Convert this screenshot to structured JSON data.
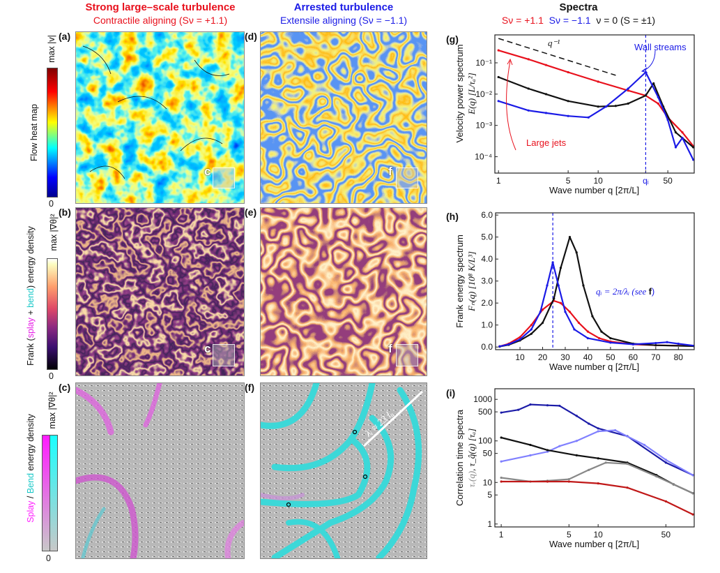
{
  "columns": {
    "left": {
      "title": "Strong large–scale turbulence",
      "subtitle": "Contractile aligning (Sν = +1.1)"
    },
    "middle": {
      "title": "Arrested turbulence",
      "subtitle": "Extensile aligning (Sν = −1.1)"
    },
    "right": {
      "title": "Spectra",
      "legend": [
        {
          "label": "Sν = +1.1",
          "color": "#e8101c"
        },
        {
          "label": "Sν = −1.1",
          "color": "#1a1ae6"
        },
        {
          "label": "ν = 0 (S = ±1)",
          "color": "#111111"
        }
      ]
    }
  },
  "panels": {
    "a": "(a)",
    "b": "(b)",
    "c": "(c)",
    "d": "(d)",
    "e": "(e)",
    "f": "(f)",
    "g": "(g)",
    "h": "(h)",
    "i": "(i)"
  },
  "insets": {
    "c_label": "c",
    "f_label": "f"
  },
  "colorbars": {
    "flow": {
      "title": "Flow heat map",
      "max": "max |v|",
      "min": "0",
      "colormap": "jet"
    },
    "frank": {
      "title_pre": "Frank (",
      "splay": "splay",
      "plus": " + ",
      "bend": "bend",
      "title_post": ") energy density",
      "max": "max |∇θ|²",
      "min": "0",
      "colormap": "inferno"
    },
    "splaybend": {
      "splay": "Splay",
      "slash": " / ",
      "bend": "Bend",
      "rest": " energy density",
      "max": "max |∇θ|²",
      "min": "0",
      "splay_color": "#ff1aff",
      "bend_color": "#1ae6e6"
    }
  },
  "annotations": {
    "wavelength": "λᵢ ≈ 23 lₐ",
    "q_power": "q⁻¹",
    "wall_streams": "Wall streams",
    "large_jets": "Large jets",
    "qi": "qᵢ",
    "qi_def": "qᵢ = 2π/λᵢ (see ",
    "qi_def_f": "f",
    "qi_def_end": ")"
  },
  "axes": {
    "g": {
      "ylabel1": "Velocity power spectrum",
      "ylabel2": "E(q) [L/τₐ²]",
      "xlabel": "Wave number q [2π/L]"
    },
    "h": {
      "ylabel1": "Frank energy spectrum",
      "ylabel2": "Fₙ(q) [10⁸ K/L³]",
      "xlabel": "Wave number q [2π/L]"
    },
    "i": {
      "ylabel1": "Correlation time spectra",
      "ylabel2a": "τᵥ(q)",
      "ylabel2b": ", τ_q̂(q) [τₐ]",
      "xlabel": "Wave number q [2π/L]"
    }
  },
  "chart_data": [
    {
      "id": "g",
      "type": "line",
      "xscale": "log",
      "yscale": "log",
      "xlim": [
        0.92,
        92
      ],
      "ylim": [
        3e-05,
        0.78
      ],
      "xticks": [
        {
          "v": 1,
          "label": "1"
        },
        {
          "v": 5,
          "label": "5"
        },
        {
          "v": 10,
          "label": "10"
        },
        {
          "v": 30,
          "label": "qᵢ",
          "color": "#1a1ae6"
        },
        {
          "v": 50,
          "label": "50"
        }
      ],
      "yticks": [
        {
          "v": 0.1,
          "label": "10⁻¹"
        },
        {
          "v": 0.01,
          "label": "10⁻²"
        },
        {
          "v": 0.001,
          "label": "10⁻³"
        },
        {
          "v": 0.0001,
          "label": "10⁻⁴"
        }
      ],
      "vlines": [
        {
          "x": 30,
          "color": "#1a1ae6",
          "dashed": true
        }
      ],
      "series": [
        {
          "color": "#111111",
          "dashed": true,
          "points": [
            [
              1,
              0.6
            ],
            [
              15,
              0.04
            ]
          ]
        },
        {
          "color": "#e8101c",
          "points": [
            [
              1,
              0.25
            ],
            [
              2,
              0.13
            ],
            [
              3,
              0.085
            ],
            [
              5,
              0.05
            ],
            [
              10,
              0.025
            ],
            [
              20,
              0.013
            ],
            [
              30,
              0.009
            ],
            [
              40,
              0.005
            ],
            [
              50,
              0.0018
            ],
            [
              70,
              0.0006
            ],
            [
              90,
              0.00022
            ]
          ]
        },
        {
          "color": "#111111",
          "points": [
            [
              1,
              0.035
            ],
            [
              2,
              0.015
            ],
            [
              3,
              0.01
            ],
            [
              5,
              0.006
            ],
            [
              10,
              0.004
            ],
            [
              15,
              0.0042
            ],
            [
              20,
              0.005
            ],
            [
              30,
              0.009
            ],
            [
              36,
              0.022
            ],
            [
              45,
              0.004
            ],
            [
              60,
              0.0006
            ],
            [
              90,
              0.0002
            ]
          ]
        },
        {
          "color": "#1a1ae6",
          "points": [
            [
              1,
              0.006
            ],
            [
              2,
              0.003
            ],
            [
              3,
              0.0025
            ],
            [
              5,
              0.002
            ],
            [
              8,
              0.0018
            ],
            [
              12,
              0.004
            ],
            [
              20,
              0.015
            ],
            [
              30,
              0.05
            ],
            [
              40,
              0.008
            ],
            [
              50,
              0.0015
            ],
            [
              60,
              0.0002
            ],
            [
              70,
              0.0004
            ],
            [
              90,
              8e-05
            ]
          ]
        }
      ]
    },
    {
      "id": "h",
      "type": "line",
      "xscale": "linear",
      "yscale": "linear",
      "xlim": [
        -0.8,
        87
      ],
      "ylim": [
        -0.12,
        6.1
      ],
      "xticks": [
        {
          "v": 10,
          "label": "10"
        },
        {
          "v": 20,
          "label": "20"
        },
        {
          "v": 30,
          "label": "30"
        },
        {
          "v": 40,
          "label": "40"
        },
        {
          "v": 50,
          "label": "50"
        },
        {
          "v": 60,
          "label": "60"
        },
        {
          "v": 70,
          "label": "70"
        },
        {
          "v": 80,
          "label": "80"
        }
      ],
      "yticks": [
        {
          "v": 0,
          "label": "0.0"
        },
        {
          "v": 1,
          "label": "1.0"
        },
        {
          "v": 2,
          "label": "2.0"
        },
        {
          "v": 3,
          "label": "3.0"
        },
        {
          "v": 4,
          "label": "4.0"
        },
        {
          "v": 5,
          "label": "5.0"
        },
        {
          "v": 6,
          "label": "6.0"
        }
      ],
      "vlines": [
        {
          "x": 24.5,
          "color": "#1a1ae6",
          "dashed": true
        }
      ],
      "series": [
        {
          "color": "#e8101c",
          "points": [
            [
              1,
              0.03
            ],
            [
              5,
              0.15
            ],
            [
              10,
              0.45
            ],
            [
              15,
              1.0
            ],
            [
              20,
              1.7
            ],
            [
              25,
              2.1
            ],
            [
              28,
              2.0
            ],
            [
              32,
              1.6
            ],
            [
              36,
              1.1
            ],
            [
              40,
              0.7
            ],
            [
              45,
              0.4
            ],
            [
              50,
              0.25
            ],
            [
              60,
              0.12
            ],
            [
              70,
              0.08
            ],
            [
              87,
              0.05
            ]
          ]
        },
        {
          "color": "#111111",
          "points": [
            [
              1,
              0.02
            ],
            [
              5,
              0.1
            ],
            [
              10,
              0.3
            ],
            [
              15,
              0.6
            ],
            [
              20,
              1.1
            ],
            [
              25,
              2.2
            ],
            [
              28,
              3.6
            ],
            [
              32,
              5.0
            ],
            [
              35,
              4.3
            ],
            [
              38,
              2.8
            ],
            [
              42,
              1.4
            ],
            [
              46,
              0.7
            ],
            [
              50,
              0.4
            ],
            [
              60,
              0.15
            ],
            [
              70,
              0.08
            ],
            [
              87,
              0.04
            ]
          ]
        },
        {
          "color": "#1a1ae6",
          "points": [
            [
              1,
              0.03
            ],
            [
              5,
              0.12
            ],
            [
              10,
              0.35
            ],
            [
              15,
              0.8
            ],
            [
              19,
              1.6
            ],
            [
              22,
              2.8
            ],
            [
              24.5,
              3.85
            ],
            [
              27,
              2.8
            ],
            [
              30,
              1.6
            ],
            [
              34,
              0.8
            ],
            [
              40,
              0.4
            ],
            [
              50,
              0.2
            ],
            [
              60,
              0.12
            ],
            [
              70,
              0.18
            ],
            [
              75,
              0.22
            ],
            [
              80,
              0.15
            ],
            [
              87,
              0.06
            ]
          ]
        }
      ]
    },
    {
      "id": "i",
      "type": "line",
      "xscale": "log",
      "yscale": "log",
      "xlim": [
        0.86,
        98
      ],
      "ylim": [
        0.85,
        1800
      ],
      "xticks": [
        {
          "v": 1,
          "label": "1"
        },
        {
          "v": 5,
          "label": "5"
        },
        {
          "v": 10,
          "label": "10"
        },
        {
          "v": 50,
          "label": "50"
        }
      ],
      "yticks": [
        {
          "v": 1,
          "label": "1"
        },
        {
          "v": 5,
          "label": "5"
        },
        {
          "v": 10,
          "label": "10"
        },
        {
          "v": 50,
          "label": "50"
        },
        {
          "v": 100,
          "label": "100"
        },
        {
          "v": 500,
          "label": "500"
        },
        {
          "v": 1000,
          "label": "1000"
        }
      ],
      "vlines": [],
      "series": [
        {
          "color": "#1c1ca8",
          "points": [
            [
              1,
              480
            ],
            [
              1.5,
              560
            ],
            [
              2,
              750
            ],
            [
              3,
              720
            ],
            [
              4,
              700
            ],
            [
              6,
              400
            ],
            [
              8,
              260
            ],
            [
              10,
              200
            ],
            [
              20,
              130
            ],
            [
              50,
              30
            ],
            [
              95,
              15
            ]
          ]
        },
        {
          "color": "#8080ff",
          "points": [
            [
              1,
              32
            ],
            [
              2,
              45
            ],
            [
              3,
              55
            ],
            [
              4,
              75
            ],
            [
              6,
              100
            ],
            [
              10,
              170
            ],
            [
              15,
              180
            ],
            [
              30,
              80
            ],
            [
              50,
              35
            ],
            [
              95,
              15
            ]
          ]
        },
        {
          "color": "#111111",
          "points": [
            [
              1,
              120
            ],
            [
              2,
              80
            ],
            [
              3,
              60
            ],
            [
              6,
              45
            ],
            [
              10,
              38
            ],
            [
              20,
              30
            ],
            [
              40,
              15
            ],
            [
              60,
              9
            ],
            [
              95,
              5.5
            ]
          ]
        },
        {
          "color": "#888888",
          "points": [
            [
              1,
              13
            ],
            [
              2,
              10.5
            ],
            [
              3,
              11
            ],
            [
              5,
              12
            ],
            [
              8,
              20
            ],
            [
              12,
              30
            ],
            [
              20,
              28
            ],
            [
              40,
              14
            ],
            [
              95,
              5.5
            ]
          ]
        },
        {
          "color": "#c01818",
          "points": [
            [
              1,
              10.5
            ],
            [
              3,
              10.5
            ],
            [
              5,
              10.5
            ],
            [
              10,
              9.5
            ],
            [
              20,
              7.5
            ],
            [
              50,
              3.5
            ],
            [
              95,
              1.7
            ]
          ]
        }
      ]
    }
  ]
}
